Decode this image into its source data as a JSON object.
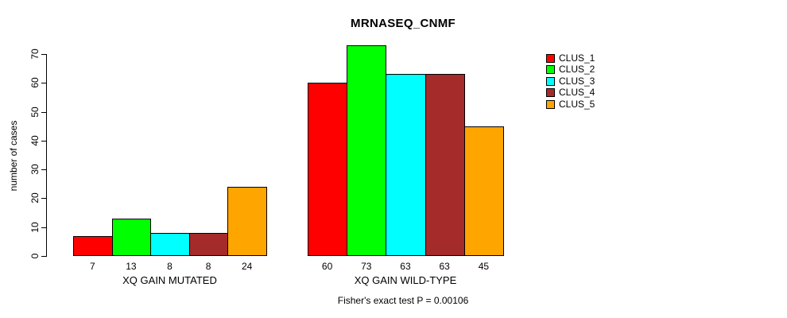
{
  "chart_data": {
    "type": "bar",
    "title": "MRNASEQ_CNMF",
    "ylabel": "number of cases",
    "xlabel": "",
    "yticks": [
      0,
      10,
      20,
      30,
      40,
      50,
      60,
      70
    ],
    "ylim": [
      0,
      73
    ],
    "grid": false,
    "legend_position": "right",
    "series_names": [
      "CLUS_1",
      "CLUS_2",
      "CLUS_3",
      "CLUS_4",
      "CLUS_5"
    ],
    "series_colors": [
      "#ff0000",
      "#00ff00",
      "#00ffff",
      "#a52a2a",
      "#ffa500"
    ],
    "groups": [
      {
        "label": "XQ GAIN MUTATED",
        "values": [
          7,
          13,
          8,
          8,
          24
        ]
      },
      {
        "label": "XQ GAIN WILD-TYPE",
        "values": [
          60,
          73,
          63,
          63,
          45
        ]
      }
    ],
    "bar_value_labels_shown": true,
    "footnote": "Fisher's exact test P = 0.00106"
  }
}
